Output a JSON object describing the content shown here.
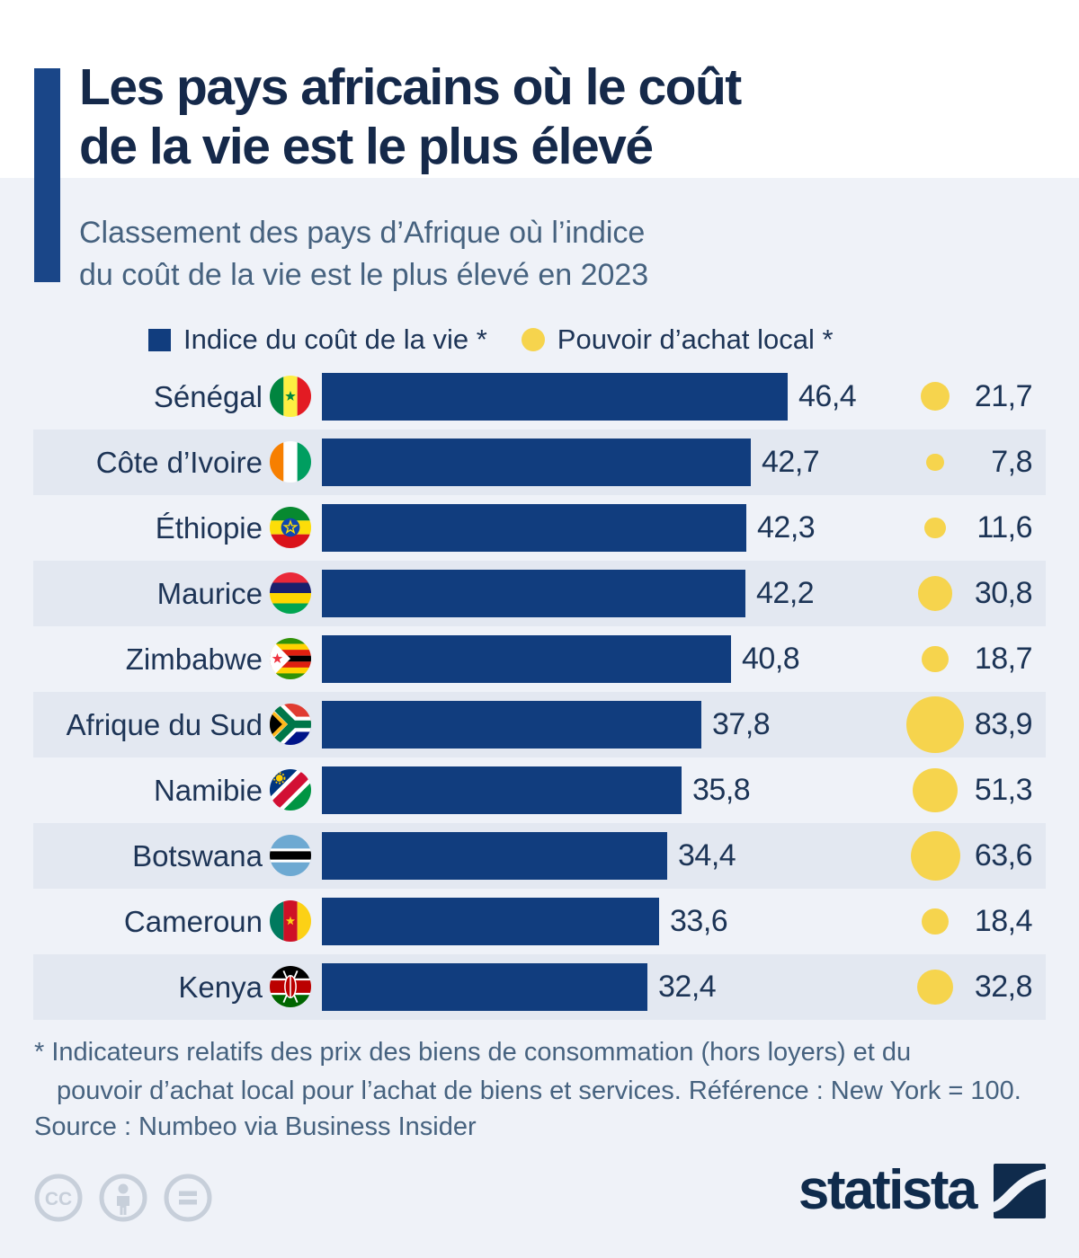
{
  "header": {
    "title_lines": [
      "Les pays africains où le coût",
      "de la vie est le plus élevé"
    ],
    "subtitle_lines": [
      "Classement des pays d’Afrique où l’indice",
      "du coût de la vie est le plus élevé en 2023"
    ]
  },
  "legend": {
    "bar_label": "Indice du coût de la vie *",
    "dot_label": "Pouvoir d’achat local *"
  },
  "chart_data": {
    "type": "bar",
    "secondary_type": "bubble",
    "orientation": "horizontal",
    "title": "Les pays africains où le coût de la vie est le plus élevé",
    "subtitle": "Classement des pays d’Afrique où l’indice du coût de la vie est le plus élevé en 2023",
    "legend_entries": [
      "Indice du coût de la vie *",
      "Pouvoir d’achat local *"
    ],
    "legend_position": "top",
    "grid": false,
    "xlim": [
      0,
      46.4
    ],
    "reference_note": "New York = 100",
    "categories": [
      "Sénégal",
      "Côte d’Ivoire",
      "Éthiopie",
      "Maurice",
      "Zimbabwe",
      "Afrique du Sud",
      "Namibie",
      "Botswana",
      "Cameroun",
      "Kenya"
    ],
    "flag_icons": [
      "senegal-flag-icon",
      "cote-divoire-flag-icon",
      "ethiopie-flag-icon",
      "maurice-flag-icon",
      "zimbabwe-flag-icon",
      "afrique-du-sud-flag-icon",
      "namibie-flag-icon",
      "botswana-flag-icon",
      "cameroun-flag-icon",
      "kenya-flag-icon"
    ],
    "series": [
      {
        "name": "Indice du coût de la vie *",
        "values": [
          46.4,
          42.7,
          42.3,
          42.2,
          40.8,
          37.8,
          35.8,
          34.4,
          33.6,
          32.4
        ]
      },
      {
        "name": "Pouvoir d’achat local *",
        "values": [
          21.7,
          7.8,
          11.6,
          30.8,
          18.7,
          83.9,
          51.3,
          63.6,
          18.4,
          32.8
        ]
      }
    ],
    "value_labels": {
      "bar": [
        "46,4",
        "42,7",
        "42,3",
        "42,2",
        "40,8",
        "37,8",
        "35,8",
        "34,4",
        "33,6",
        "32,4"
      ],
      "dot": [
        "21,7",
        "7,8",
        "11,6",
        "30,8",
        "18,7",
        "83,9",
        "51,3",
        "63,6",
        "18,4",
        "32,8"
      ]
    },
    "decimal_separator": ","
  },
  "footnotes": {
    "line1": "* Indicateurs relatifs des prix des biens de consommation (hors loyers) et du",
    "line2": "pouvoir d’achat local pour l’achat de biens et services. Référence : New York = 100.",
    "source": "Source : Numbeo via Business Insider"
  },
  "branding": {
    "logo_text": "statista",
    "license_icons": [
      "cc-icon",
      "attribution-icon",
      "equal-icon"
    ]
  },
  "colors": {
    "bar": "#113D7E",
    "dot": "#F6D44D",
    "bg": "#EFF2F8",
    "stripe": "#E3E8F1",
    "title": "#15294A",
    "subtitle": "#46627F",
    "label": "#1D3456",
    "value": "#1C3456",
    "accent": "#1A4688",
    "logo": "#0F2B4C",
    "cc": "#C7CFDA"
  }
}
